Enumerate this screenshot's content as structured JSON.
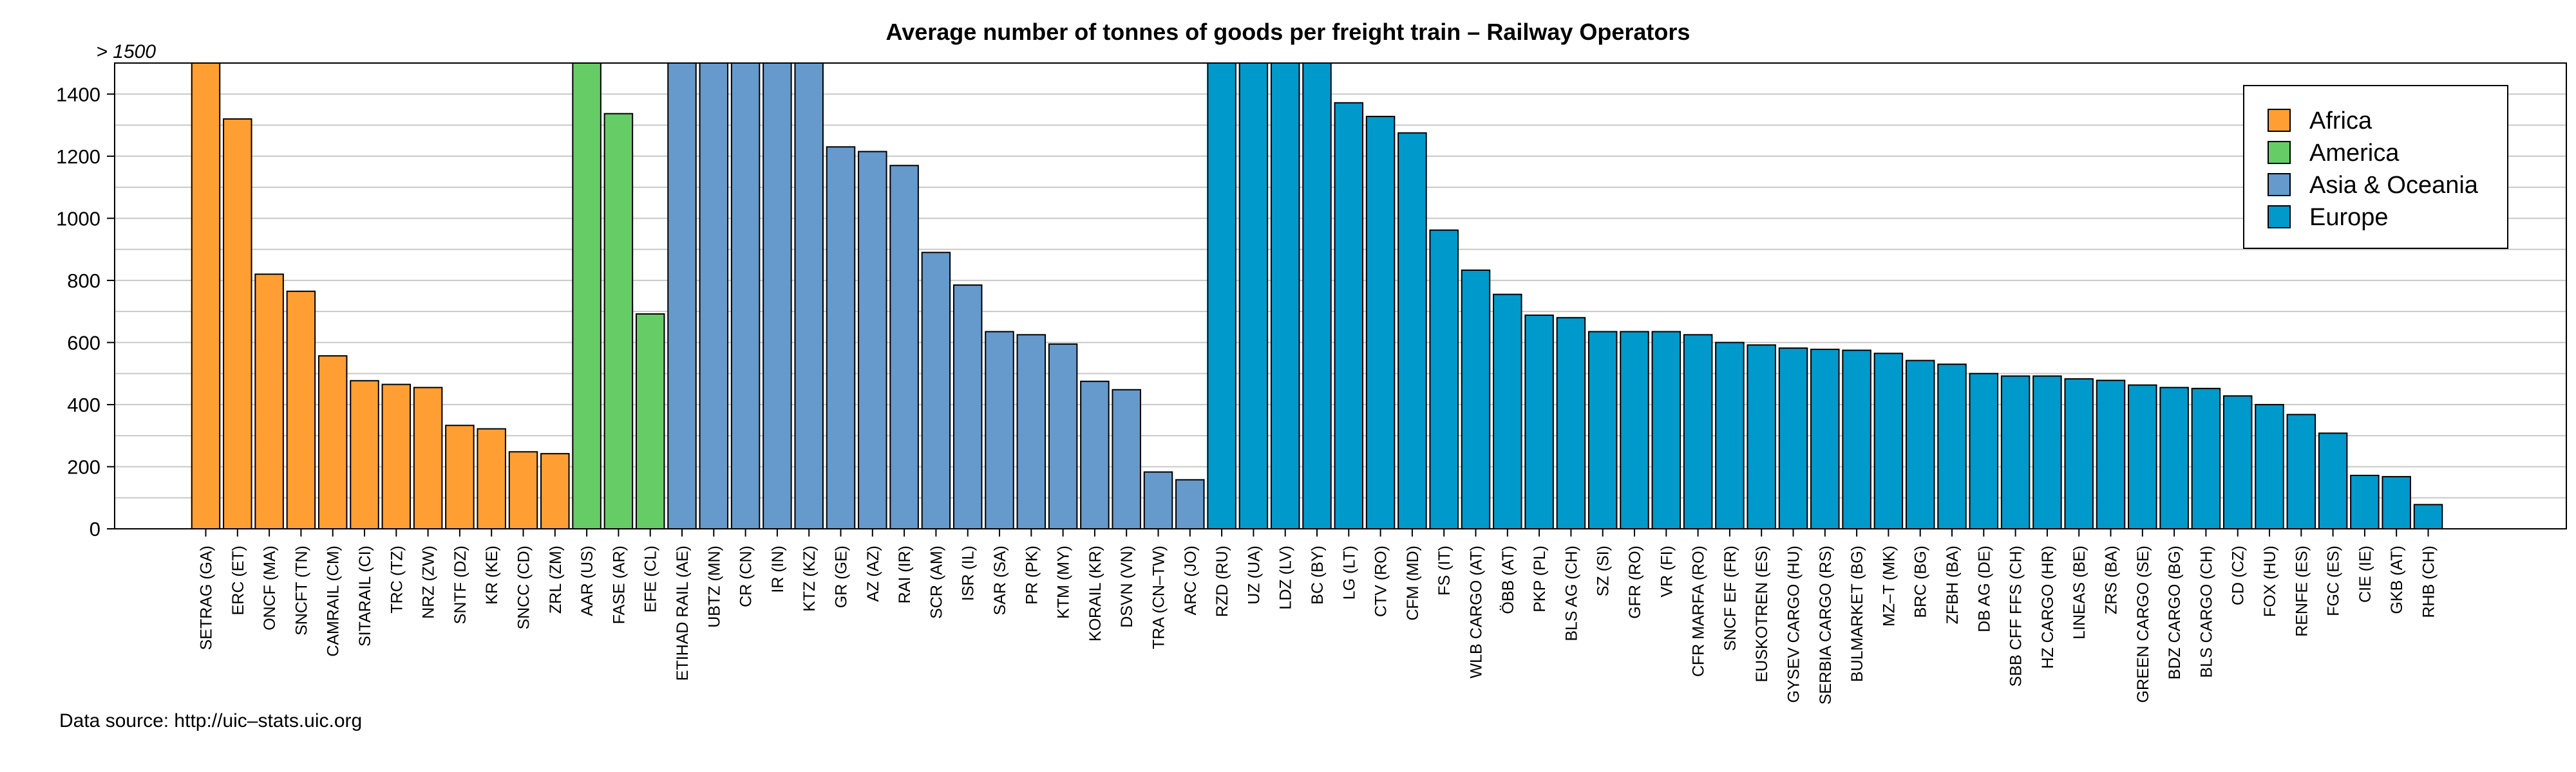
{
  "chart_data": {
    "type": "bar",
    "title": "Average number of tonnes of goods per freight train – Railway Operators",
    "overflow_label": "> 1500",
    "source": "Data source: http://uic–stats.uic.org",
    "ylim": [
      0,
      1500
    ],
    "yticks": [
      0,
      200,
      400,
      600,
      800,
      1000,
      1200,
      1400
    ],
    "grid": true,
    "legend_position": "top-right",
    "series": [
      {
        "name": "Africa",
        "color": "#ff9f33"
      },
      {
        "name": "America",
        "color": "#66cc66"
      },
      {
        "name": "Asia & Oceania",
        "color": "#6699cc"
      },
      {
        "name": "Europe",
        "color": "#0099cc"
      }
    ],
    "categories": [
      "SETRAG (GA)",
      "ERC (ET)",
      "ONCF (MA)",
      "SNCFT (TN)",
      "CAMRAIL (CM)",
      "SITARAIL (CI)",
      "TRC (TZ)",
      "NRZ (ZW)",
      "SNTF (DZ)",
      "KR (KE)",
      "SNCC (CD)",
      "ZRL (ZM)",
      "AAR (US)",
      "FASE (AR)",
      "EFE (CL)",
      "ETIHAD RAIL (AE)",
      "UBTZ (MN)",
      "CR (CN)",
      "IR (IN)",
      "KTZ (KZ)",
      "GR (GE)",
      "AZ (AZ)",
      "RAI (IR)",
      "SCR (AM)",
      "ISR (IL)",
      "SAR (SA)",
      "PR (PK)",
      "KTM (MY)",
      "KORAIL (KR)",
      "DSVN (VN)",
      "TRA (CN–TW)",
      "ARC (JO)",
      "RZD (RU)",
      "UZ (UA)",
      "LDZ (LV)",
      "BC (BY)",
      "LG (LT)",
      "CTV (RO)",
      "CFM (MD)",
      "FS (IT)",
      "WLB CARGO (AT)",
      "ÖBB (AT)",
      "PKP (PL)",
      "BLS AG (CH)",
      "SZ (SI)",
      "GFR (RO)",
      "VR (FI)",
      "CFR MARFA (RO)",
      "SNCF EF (FR)",
      "EUSKOTREN (ES)",
      "GYSEV CARGO (HU)",
      "SERBIA CARGO (RS)",
      "BULMARKET (BG)",
      "MZ–T (MK)",
      "BRC (BG)",
      "ZFBH (BA)",
      "DB AG (DE)",
      "SBB CFF FFS (CH)",
      "HZ CARGO (HR)",
      "LINEAS (BE)",
      "ZRS (BA)",
      "GREEN CARGO (SE)",
      "BDZ CARGO (BG)",
      "BLS CARGO (CH)",
      "CD (CZ)",
      "FOX (HU)",
      "RENFE (ES)",
      "FGC (ES)",
      "CIE (IE)",
      "GKB (AT)",
      "RHB (CH)"
    ],
    "values": [
      1500,
      1320,
      820,
      765,
      557,
      477,
      465,
      455,
      333,
      322,
      248,
      242,
      1500,
      1337,
      692,
      1500,
      1500,
      1500,
      1500,
      1500,
      1230,
      1215,
      1170,
      890,
      785,
      635,
      625,
      595,
      475,
      448,
      183,
      158,
      1500,
      1500,
      1500,
      1500,
      1372,
      1328,
      1275,
      962,
      833,
      755,
      688,
      680,
      635,
      635,
      635,
      625,
      600,
      592,
      582,
      578,
      575,
      565,
      542,
      530,
      500,
      492,
      492,
      483,
      478,
      463,
      455,
      452,
      428,
      400,
      368,
      308,
      172,
      168,
      78
    ],
    "region_index": [
      0,
      0,
      0,
      0,
      0,
      0,
      0,
      0,
      0,
      0,
      0,
      0,
      1,
      1,
      1,
      2,
      2,
      2,
      2,
      2,
      2,
      2,
      2,
      2,
      2,
      2,
      2,
      2,
      2,
      2,
      2,
      2,
      3,
      3,
      3,
      3,
      3,
      3,
      3,
      3,
      3,
      3,
      3,
      3,
      3,
      3,
      3,
      3,
      3,
      3,
      3,
      3,
      3,
      3,
      3,
      3,
      3,
      3,
      3,
      3,
      3,
      3,
      3,
      3,
      3,
      3,
      3,
      3,
      3,
      3,
      3
    ]
  }
}
